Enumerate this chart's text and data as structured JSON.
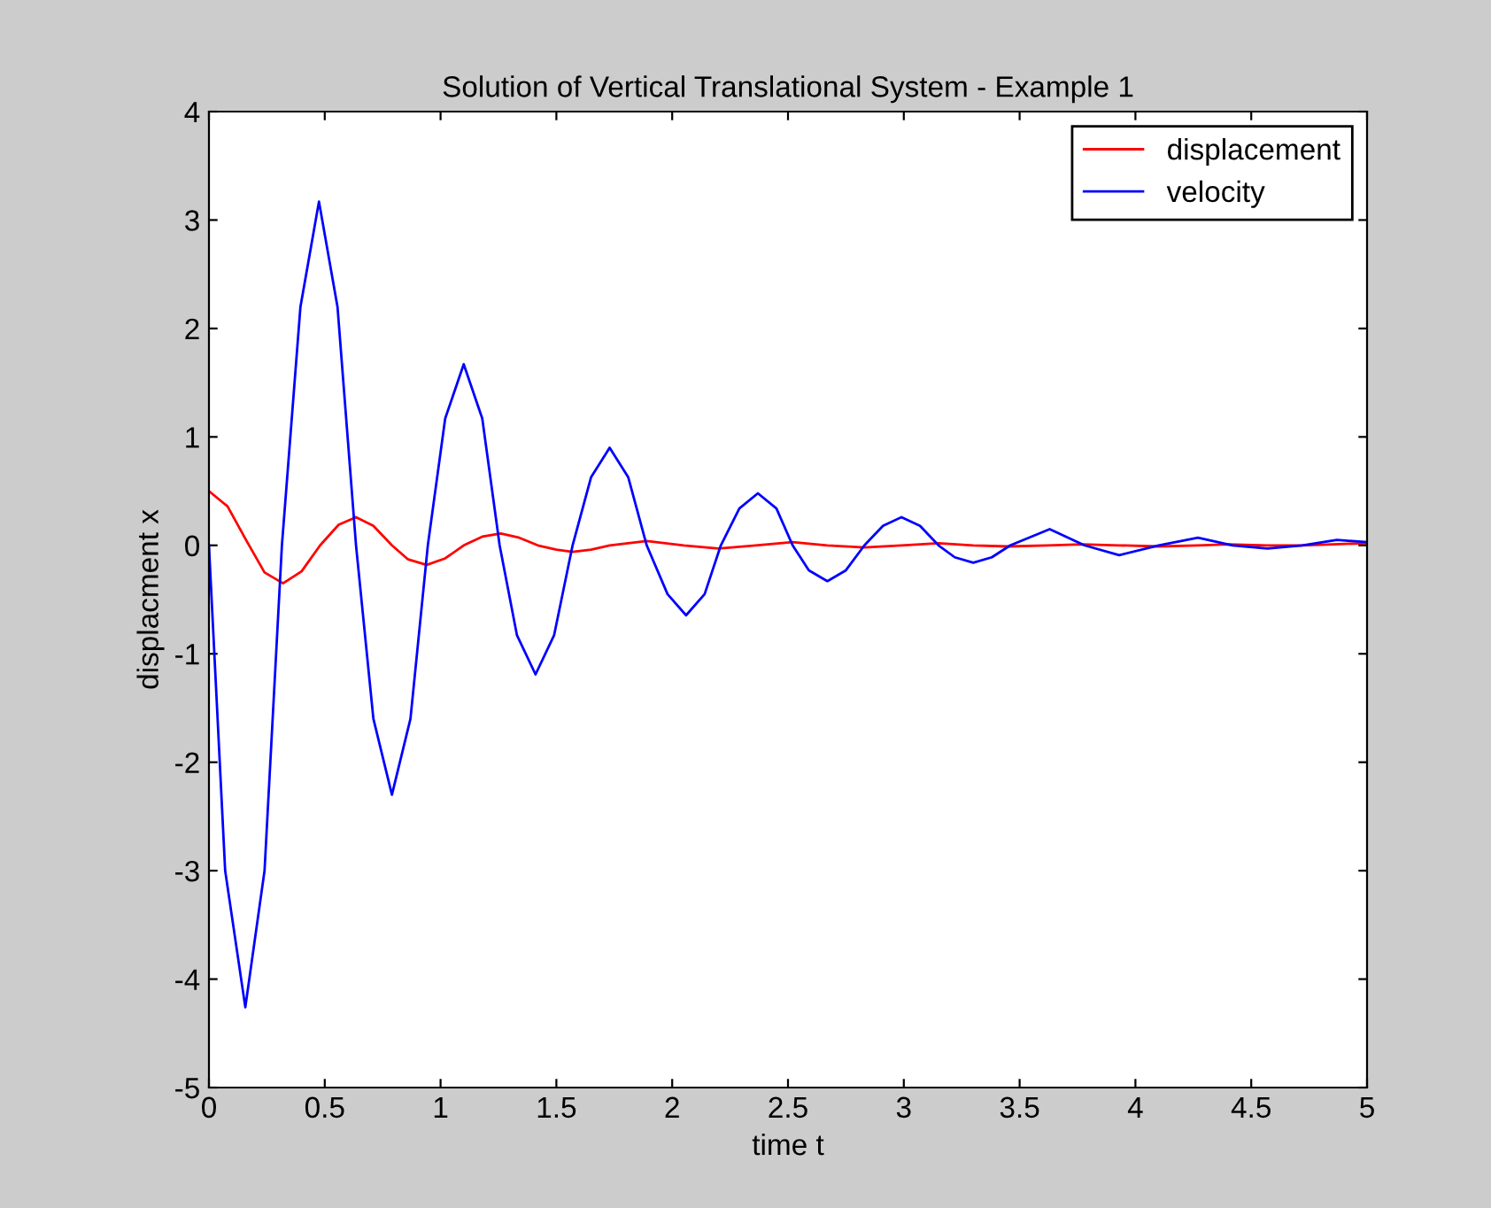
{
  "chart_data": {
    "type": "line",
    "title": "Solution of Vertical Translational System - Example 1",
    "xlabel": "time t",
    "ylabel": "displacment x",
    "xlim": [
      0,
      5
    ],
    "xticks": [
      0,
      0.5,
      1,
      1.5,
      2,
      2.5,
      3,
      3.5,
      4,
      4.5,
      5
    ],
    "ylim": [
      -5,
      4
    ],
    "yticks": [
      -5,
      -4,
      -3,
      -2,
      -1,
      0,
      1,
      2,
      3,
      4
    ],
    "grid": false,
    "legend": "top right",
    "series": [
      {
        "name": "displacement",
        "color": "#ff0000",
        "x": [
          0,
          0.08,
          0.16,
          0.24,
          0.32,
          0.4,
          0.48,
          0.56,
          0.635,
          0.71,
          0.79,
          0.86,
          0.94,
          1.02,
          1.1,
          1.18,
          1.26,
          1.34,
          1.42,
          1.5,
          1.57,
          1.65,
          1.73,
          1.89,
          2.05,
          2.2,
          2.36,
          2.52,
          2.67,
          2.83,
          2.99,
          3.15,
          3.3,
          3.45,
          3.62,
          3.77,
          3.93,
          4.1,
          4.27,
          4.4,
          4.57,
          4.72,
          5
        ],
        "values": [
          0.5,
          0.36,
          0.05,
          -0.25,
          -0.35,
          -0.24,
          0,
          0.19,
          0.26,
          0.18,
          0,
          -0.13,
          -0.18,
          -0.12,
          0,
          0.08,
          0.11,
          0.07,
          0,
          -0.04,
          -0.06,
          -0.04,
          0,
          0.04,
          0,
          -0.03,
          0,
          0.03,
          0,
          -0.02,
          0,
          0.02,
          0,
          -0.01,
          0,
          0.01,
          0,
          -0.01,
          0,
          0.01,
          0,
          0,
          0.02
        ]
      },
      {
        "name": "velocity",
        "color": "#0000ff",
        "x": [
          0,
          0.07,
          0.157,
          0.24,
          0.315,
          0.395,
          0.475,
          0.555,
          0.635,
          0.71,
          0.79,
          0.87,
          0.945,
          1.02,
          1.1,
          1.18,
          1.255,
          1.33,
          1.41,
          1.49,
          1.57,
          1.65,
          1.73,
          1.81,
          1.89,
          1.98,
          2.06,
          2.14,
          2.21,
          2.29,
          2.37,
          2.45,
          2.52,
          2.59,
          2.67,
          2.75,
          2.83,
          2.91,
          2.99,
          3.07,
          3.15,
          3.22,
          3.3,
          3.38,
          3.46,
          3.63,
          3.78,
          3.93,
          4.1,
          4.27,
          4.42,
          4.57,
          4.72,
          4.87,
          5
        ],
        "values": [
          0,
          -3.0,
          -4.26,
          -3.0,
          0,
          2.2,
          3.17,
          2.2,
          0,
          -1.6,
          -2.3,
          -1.6,
          0,
          1.17,
          1.67,
          1.17,
          0,
          -0.83,
          -1.19,
          -0.83,
          0,
          0.63,
          0.9,
          0.63,
          0,
          -0.45,
          -0.645,
          -0.45,
          0,
          0.34,
          0.48,
          0.34,
          0,
          -0.23,
          -0.33,
          -0.23,
          0,
          0.18,
          0.26,
          0.18,
          0,
          -0.11,
          -0.16,
          -0.11,
          0,
          0.15,
          0,
          -0.09,
          0,
          0.07,
          0,
          -0.03,
          0,
          0.05,
          0.03
        ]
      }
    ]
  }
}
